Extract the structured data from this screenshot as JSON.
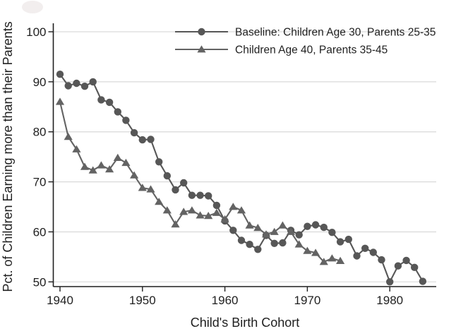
{
  "colors": {
    "series_baseline": "#575757",
    "series_age40": "#636363",
    "grid": "#d9d9d9",
    "axis": "#1f1f1f",
    "text": "#1f1f1f",
    "background": "#ffffff",
    "smudge": "#f2eeee"
  },
  "chart_data": {
    "type": "line",
    "title": "",
    "xlabel": "Child's Birth Cohort",
    "ylabel": "Pct. of Children Earning more than their Parents",
    "xticks": [
      1940,
      1950,
      1960,
      1970,
      1980
    ],
    "yticks": [
      50,
      60,
      70,
      80,
      90,
      100
    ],
    "xlim": [
      1939.2,
      1985.8
    ],
    "ylim": [
      49,
      101.8
    ],
    "grid": "horizontal",
    "legend_position": "top-center",
    "series": [
      {
        "name": "Baseline: Children Age 30, Parents 25-35",
        "marker": "circle",
        "x": [
          1940,
          1941,
          1942,
          1943,
          1944,
          1945,
          1946,
          1947,
          1948,
          1949,
          1950,
          1951,
          1952,
          1953,
          1954,
          1955,
          1956,
          1957,
          1958,
          1959,
          1960,
          1961,
          1962,
          1963,
          1964,
          1965,
          1966,
          1967,
          1968,
          1969,
          1970,
          1971,
          1972,
          1973,
          1974,
          1975,
          1976,
          1977,
          1978,
          1979,
          1980,
          1981,
          1982,
          1983,
          1984
        ],
        "values": [
          91.5,
          89.2,
          89.7,
          89.1,
          90.0,
          86.4,
          85.9,
          84.0,
          82.3,
          79.8,
          78.4,
          78.5,
          74.0,
          71.2,
          68.4,
          69.8,
          67.3,
          67.3,
          67.2,
          65.3,
          62.2,
          60.3,
          58.3,
          57.5,
          56.5,
          59.3,
          57.7,
          57.8,
          60.3,
          59.4,
          61.1,
          61.4,
          60.9,
          59.9,
          58.0,
          58.5,
          55.2,
          56.7,
          55.9,
          54.4,
          50.0,
          53.2,
          54.3,
          52.9,
          50.1
        ]
      },
      {
        "name": "Children Age 40, Parents 35-45",
        "marker": "triangle",
        "x": [
          1940,
          1941,
          1942,
          1943,
          1944,
          1945,
          1946,
          1947,
          1948,
          1949,
          1950,
          1951,
          1952,
          1953,
          1954,
          1955,
          1956,
          1957,
          1958,
          1959,
          1960,
          1961,
          1962,
          1963,
          1964,
          1965,
          1966,
          1967,
          1968,
          1969,
          1970,
          1971,
          1972,
          1973,
          1974
        ],
        "values": [
          86.0,
          79.0,
          76.5,
          73.0,
          72.3,
          73.3,
          72.5,
          74.8,
          73.8,
          71.3,
          68.8,
          68.5,
          66.0,
          64.3,
          61.5,
          64.0,
          64.3,
          63.3,
          63.2,
          63.8,
          62.5,
          65.0,
          64.3,
          61.3,
          60.8,
          59.5,
          60.0,
          61.3,
          60.0,
          57.5,
          56.2,
          55.8,
          54.0,
          54.7,
          54.2
        ]
      }
    ]
  }
}
